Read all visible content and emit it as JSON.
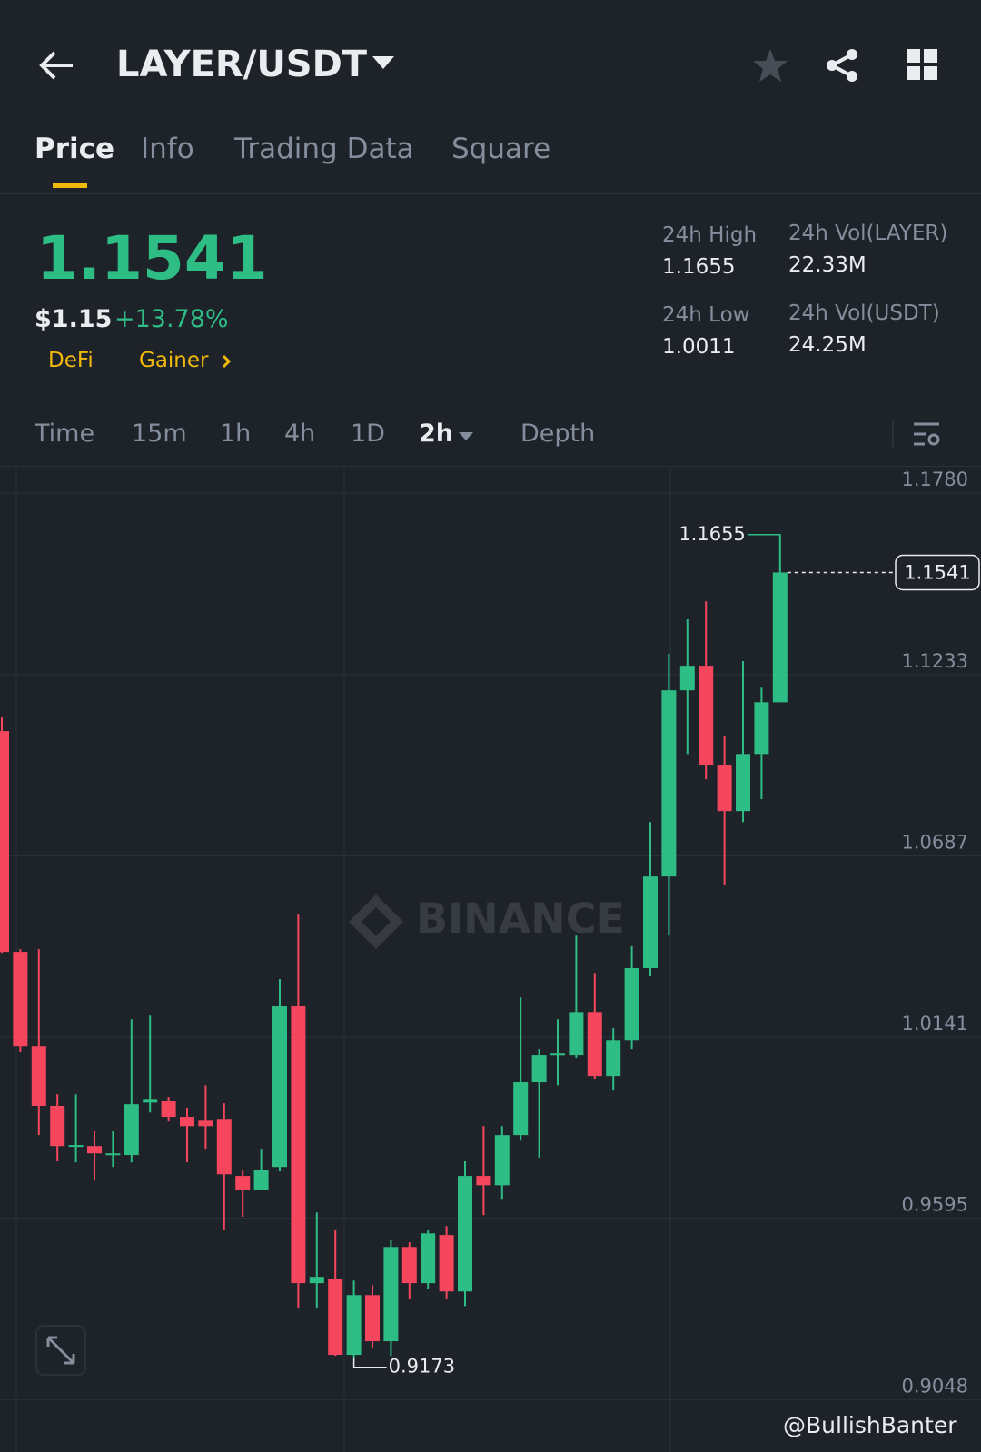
{
  "header": {
    "pair": "LAYER/USDT"
  },
  "tabs": [
    "Price",
    "Info",
    "Trading Data",
    "Square"
  ],
  "price": {
    "last": "1.1541",
    "fiat": "$1.15",
    "change": "+13.78%",
    "tags": [
      "DeFi",
      "Gainer"
    ]
  },
  "stats": [
    {
      "label": "24h High",
      "value": "1.1655"
    },
    {
      "label": "24h Vol(LAYER)",
      "value": "22.33M"
    },
    {
      "label": "24h Low",
      "value": "1.0011"
    },
    {
      "label": "24h Vol(USDT)",
      "value": "24.25M"
    }
  ],
  "intervals": [
    "Time",
    "15m",
    "1h",
    "4h",
    "1D",
    "2h",
    "Depth"
  ],
  "chart_data": {
    "type": "candlestick",
    "watermark": "BINANCE",
    "up_color": "#2ebd85",
    "down_color": "#f6465d",
    "open": [
      1.1063,
      1.0398,
      1.0113,
      0.9933,
      0.9812,
      0.9812,
      0.9785,
      0.9785,
      0.9943,
      0.9949,
      0.99,
      0.9891,
      0.9894,
      0.9722,
      0.9681,
      0.9749,
      1.0234,
      0.9399,
      0.9413,
      0.9183,
      0.9363,
      0.9224,
      0.9508,
      0.9399,
      0.9544,
      0.9374,
      0.9722,
      0.9694,
      0.9845,
      1.0004,
      1.0086,
      1.0086,
      1.0214,
      1.0023,
      1.0132,
      1.0349,
      1.0625,
      1.1186,
      1.126,
      1.0962,
      1.0822,
      1.0994,
      1.115
    ],
    "high": [
      1.1104,
      1.0406,
      1.0406,
      0.9968,
      0.9968,
      0.9859,
      0.9859,
      1.0195,
      1.0206,
      0.996,
      0.9927,
      0.9995,
      0.9941,
      0.9741,
      0.9804,
      1.0316,
      1.051,
      0.9612,
      0.9558,
      0.9407,
      0.9393,
      0.953,
      0.9522,
      0.9558,
      0.9571,
      0.9768,
      0.9872,
      0.9872,
      1.0261,
      1.0105,
      1.0195,
      1.0447,
      1.0332,
      1.0168,
      1.0415,
      1.0789,
      1.1296,
      1.14,
      1.1454,
      1.1049,
      1.1274,
      1.1194,
      1.1655
    ],
    "low": [
      1.0392,
      1.0097,
      0.9845,
      0.9768,
      0.9763,
      0.9708,
      0.9749,
      0.9763,
      0.9913,
      0.9886,
      0.9763,
      0.9804,
      0.9558,
      0.9599,
      0.9681,
      0.9736,
      0.9325,
      0.9325,
      0.918,
      0.9173,
      0.9202,
      0.918,
      0.9352,
      0.938,
      0.9352,
      0.933,
      0.9604,
      0.9653,
      0.9831,
      0.9777,
      0.9995,
      1.0078,
      1.0015,
      0.9982,
      1.0105,
      1.0324,
      1.0447,
      1.0994,
      1.0918,
      1.0598,
      1.0789,
      1.0858,
      1.115
    ],
    "close": [
      1.0398,
      1.0113,
      0.9933,
      0.9812,
      0.9815,
      0.979,
      0.979,
      0.9938,
      0.9954,
      0.99,
      0.9872,
      0.9872,
      0.9727,
      0.9681,
      0.9741,
      1.0234,
      0.9399,
      0.9418,
      0.9183,
      0.9363,
      0.9224,
      0.9508,
      0.9399,
      0.9549,
      0.9374,
      0.9722,
      0.9694,
      0.9845,
      1.0004,
      1.0086,
      1.0091,
      1.0214,
      1.0023,
      1.0132,
      1.0349,
      1.0625,
      1.1186,
      1.126,
      1.0962,
      1.0822,
      1.0994,
      1.115,
      1.1541
    ],
    "ylim": [
      0.8997,
      1.1857
    ],
    "yticks": [
      {
        "value": 1.178,
        "label": "1.1780"
      },
      1.1233,
      1.0687,
      1.0141,
      0.9595,
      0.9048
    ],
    "grid": true
  },
  "footer": {
    "watermark": "@BullishBanter"
  }
}
